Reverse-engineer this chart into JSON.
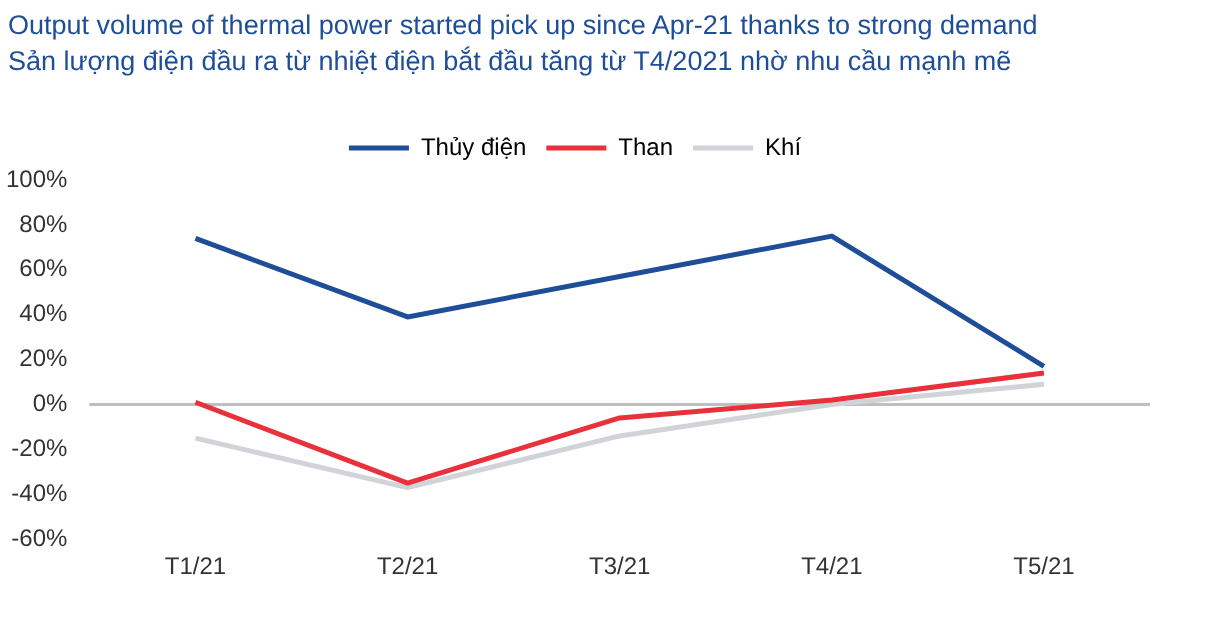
{
  "chart_data": {
    "type": "line",
    "title": "Output volume of thermal power started pick up since Apr-21 thanks to strong demand",
    "subtitle": "Sản lượng điện đầu ra từ nhiệt điện bắt đầu tăng từ T4/2021 nhờ nhu cầu mạnh mẽ",
    "categories": [
      "T1/21",
      "T2/21",
      "T3/21",
      "T4/21",
      "T5/21"
    ],
    "series": [
      {
        "name": "Thủy điện",
        "color": "#1f4e99",
        "values": [
          74,
          39,
          57,
          75,
          17
        ]
      },
      {
        "name": "Than",
        "color": "#e8313a",
        "values": [
          1,
          -35,
          -6,
          2,
          14
        ]
      },
      {
        "name": "Khí",
        "color": "#d0d3d8",
        "values": [
          -15,
          -37,
          -14,
          0,
          9
        ]
      }
    ],
    "ylim": [
      -60,
      100
    ],
    "yticks": [
      {
        "value": -60,
        "label": "-60%"
      },
      {
        "value": -40,
        "label": "-40%"
      },
      {
        "value": -20,
        "label": "-20%"
      },
      {
        "value": 0,
        "label": "0%"
      },
      {
        "value": 20,
        "label": "20%"
      },
      {
        "value": 40,
        "label": "40%"
      },
      {
        "value": 60,
        "label": "60%"
      },
      {
        "value": 80,
        "label": "80%"
      },
      {
        "value": 100,
        "label": "100%"
      }
    ],
    "ref_lines": [
      {
        "axis": "y",
        "value": 0,
        "color": "#bfbfbf"
      }
    ],
    "grid": false,
    "legend": "top",
    "marker": "none",
    "line_style": "solid"
  }
}
